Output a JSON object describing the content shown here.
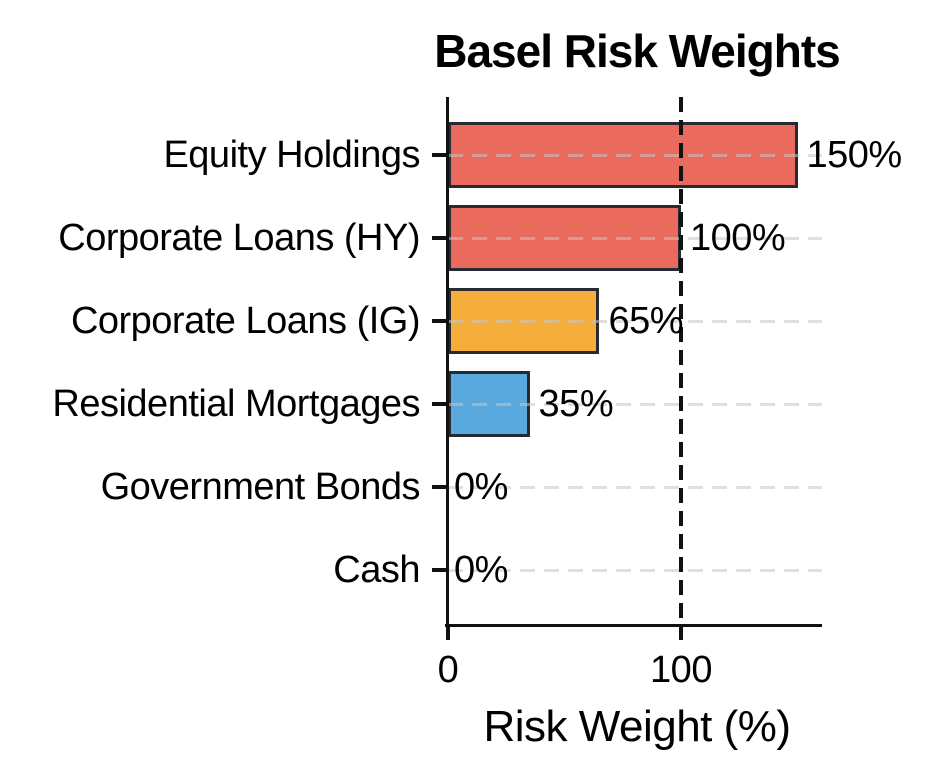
{
  "figure": {
    "background": "#ffffff"
  },
  "chart_data": {
    "type": "bar",
    "orientation": "horizontal",
    "title": "Basel Risk Weights",
    "xlabel": "Risk Weight (%)",
    "categories": [
      "Equity Holdings",
      "Corporate Loans (HY)",
      "Corporate Loans (IG)",
      "Residential Mortgages",
      "Government Bonds",
      "Cash"
    ],
    "values": [
      150,
      100,
      65,
      35,
      0,
      0
    ],
    "value_labels": [
      "150%",
      "100%",
      "65%",
      "35%",
      "0%",
      "0%"
    ],
    "bar_colors": [
      "#EB6A5E",
      "#EB6A5E",
      "#F5AE3C",
      "#5AA9DE",
      "#EB6A5E",
      "#EB6A5E"
    ],
    "bar_edge_color": "#272B31",
    "x_ticks": [
      0,
      100
    ],
    "x_tick_labels": [
      "0",
      "100"
    ],
    "xlim": [
      0,
      160
    ],
    "reference_line": {
      "x": 100,
      "style": "dashed",
      "color": "#111111"
    },
    "grid": {
      "axis": "y",
      "style": "dashed",
      "color": "#c6c6c6"
    },
    "legend": null
  }
}
